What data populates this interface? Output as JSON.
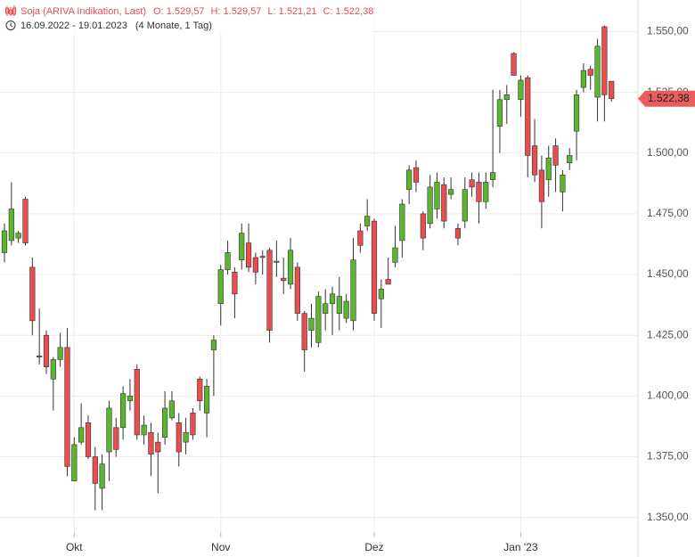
{
  "chart_data": {
    "type": "candlestick",
    "title": "Soja (ARIVA Indikation, Last)",
    "ohlc_labels": [
      "O: 1.529,57",
      "H: 1.529,57",
      "L: 1.521,21",
      "C: 1.522,38"
    ],
    "subtitle": "16.09.2022 - 19.01.2023",
    "period": "(4 Monate, 1 Tag)",
    "last_price_label": "1.522,38",
    "up_color": "#5cb531",
    "down_color": "#e94e4e",
    "grid": true,
    "ylim": [
      1344,
      1563
    ],
    "yticks": [
      {
        "value": 1350,
        "label": "1.350,00"
      },
      {
        "value": 1375,
        "label": "1.375,00"
      },
      {
        "value": 1400,
        "label": "1.400,00"
      },
      {
        "value": 1425,
        "label": "1.425,00"
      },
      {
        "value": 1450,
        "label": "1.450,00"
      },
      {
        "value": 1475,
        "label": "1.475,00"
      },
      {
        "value": 1500,
        "label": "1.500,00"
      },
      {
        "value": 1525,
        "label": "1.525,00"
      },
      {
        "value": 1550,
        "label": "1.550,00"
      }
    ],
    "categories": [
      null,
      null,
      null,
      null,
      null,
      null,
      null,
      null,
      null,
      null,
      "Okt",
      null,
      null,
      null,
      null,
      null,
      null,
      null,
      null,
      null,
      null,
      null,
      null,
      null,
      null,
      null,
      null,
      null,
      null,
      null,
      null,
      "Nov",
      null,
      null,
      null,
      null,
      null,
      null,
      null,
      null,
      null,
      null,
      null,
      null,
      null,
      null,
      null,
      null,
      null,
      null,
      null,
      null,
      null,
      "Dez",
      null,
      null,
      null,
      null,
      null,
      null,
      null,
      null,
      null,
      null,
      null,
      null,
      null,
      null,
      null,
      null,
      null,
      null,
      null,
      null,
      "Jan '23",
      null,
      null,
      null,
      null,
      null,
      null,
      null,
      null,
      null,
      null,
      null,
      null,
      null
    ],
    "open": [
      1459,
      1464,
      1465,
      1481,
      1453,
      1416.5,
      1425,
      1407,
      1415,
      1420,
      1365,
      1381,
      1389,
      1375,
      1362,
      1377,
      1387,
      1387,
      1398,
      1411,
      1384,
      1385,
      1381,
      1383,
      1391,
      1389,
      1381,
      1393,
      1407,
      1393,
      1419,
      1438,
      1452,
      1451,
      1456,
      1463,
      1457,
      1457.5,
      1460,
      1455,
      1448.5,
      1446,
      1453,
      1434,
      1427,
      1422,
      1434,
      1438,
      1434,
      1432,
      1431,
      1468,
      1470,
      1472,
      1440,
      1448,
      1455,
      1464,
      1485,
      1494,
      1475,
      1471,
      1477,
      1487,
      1483,
      1469,
      1472,
      1489,
      1488,
      1480,
      1489,
      1511,
      1522,
      1541,
      1522,
      1531,
      1503,
      1493,
      1489,
      1503,
      1484,
      1496,
      1509,
      1527,
      1534.5,
      1523,
      1552,
      1529.57
    ],
    "high": [
      1471,
      1488,
      1468,
      1482,
      1457,
      1436,
      1427,
      1416,
      1426,
      1428,
      1383,
      1397,
      1392,
      1379,
      1376,
      1398,
      1391,
      1404,
      1407,
      1413,
      1392,
      1389,
      1385,
      1402,
      1402,
      1393,
      1391,
      1395,
      1408,
      1407,
      1425,
      1454,
      1464,
      1453,
      1471,
      1471,
      1459,
      1460,
      1461,
      1464,
      1457,
      1465,
      1455,
      1435,
      1438,
      1443,
      1444,
      1445,
      1449,
      1442,
      1465,
      1471,
      1481,
      1473,
      1448,
      1457,
      1470,
      1481,
      1495,
      1497,
      1476,
      1491,
      1492,
      1490,
      1490,
      1471,
      1490,
      1492,
      1492,
      1492,
      1526,
      1526,
      1528,
      1541.5,
      1532,
      1532,
      1514,
      1499,
      1503,
      1506,
      1493,
      1502,
      1526,
      1537,
      1536,
      1547,
      1552.5,
      1529.57
    ],
    "low": [
      1455,
      1462,
      1463,
      1462,
      1425,
      1413,
      1409,
      1394,
      1412,
      1367,
      1365,
      1380,
      1374,
      1353,
      1353,
      1365,
      1375,
      1382,
      1394,
      1382,
      1380,
      1367,
      1360,
      1380,
      1390,
      1371,
      1376,
      1382,
      1394,
      1383,
      1400,
      1429,
      1450,
      1432,
      1452,
      1451,
      1446,
      1450,
      1422,
      1449,
      1442,
      1444,
      1431,
      1410,
      1420,
      1420,
      1427,
      1425,
      1427,
      1430,
      1427,
      1459,
      1468,
      1431,
      1428,
      1446,
      1453,
      1457,
      1479,
      1484,
      1460,
      1469,
      1473,
      1469,
      1481,
      1462,
      1469,
      1482,
      1471,
      1477,
      1486,
      1500,
      1512,
      1532,
      1515,
      1490,
      1488,
      1469,
      1482,
      1484,
      1476,
      1493,
      1497,
      1525,
      1526,
      1513,
      1513,
      1521.21
    ],
    "close": [
      1468,
      1477,
      1467,
      1463,
      1431,
      1416,
      1412,
      1415,
      1420,
      1371,
      1380,
      1387,
      1375,
      1364,
      1372,
      1395,
      1378,
      1401,
      1400,
      1384,
      1388,
      1376,
      1377,
      1395,
      1398,
      1377,
      1385,
      1384,
      1398,
      1404,
      1423,
      1452,
      1459,
      1442,
      1467,
      1453,
      1451,
      1457,
      1427,
      1455.5,
      1447.5,
      1460,
      1434,
      1419,
      1432,
      1441,
      1438,
      1442,
      1441,
      1439,
      1456,
      1462,
      1474,
      1434,
      1444,
      1446,
      1461,
      1479,
      1493,
      1488,
      1465,
      1486,
      1488,
      1472,
      1485,
      1465,
      1485,
      1486,
      1480,
      1488,
      1492,
      1522,
      1524,
      1532,
      1530,
      1499,
      1491,
      1480,
      1498,
      1495,
      1491,
      1499,
      1524,
      1534,
      1532,
      1544,
      1524,
      1522.38
    ]
  }
}
